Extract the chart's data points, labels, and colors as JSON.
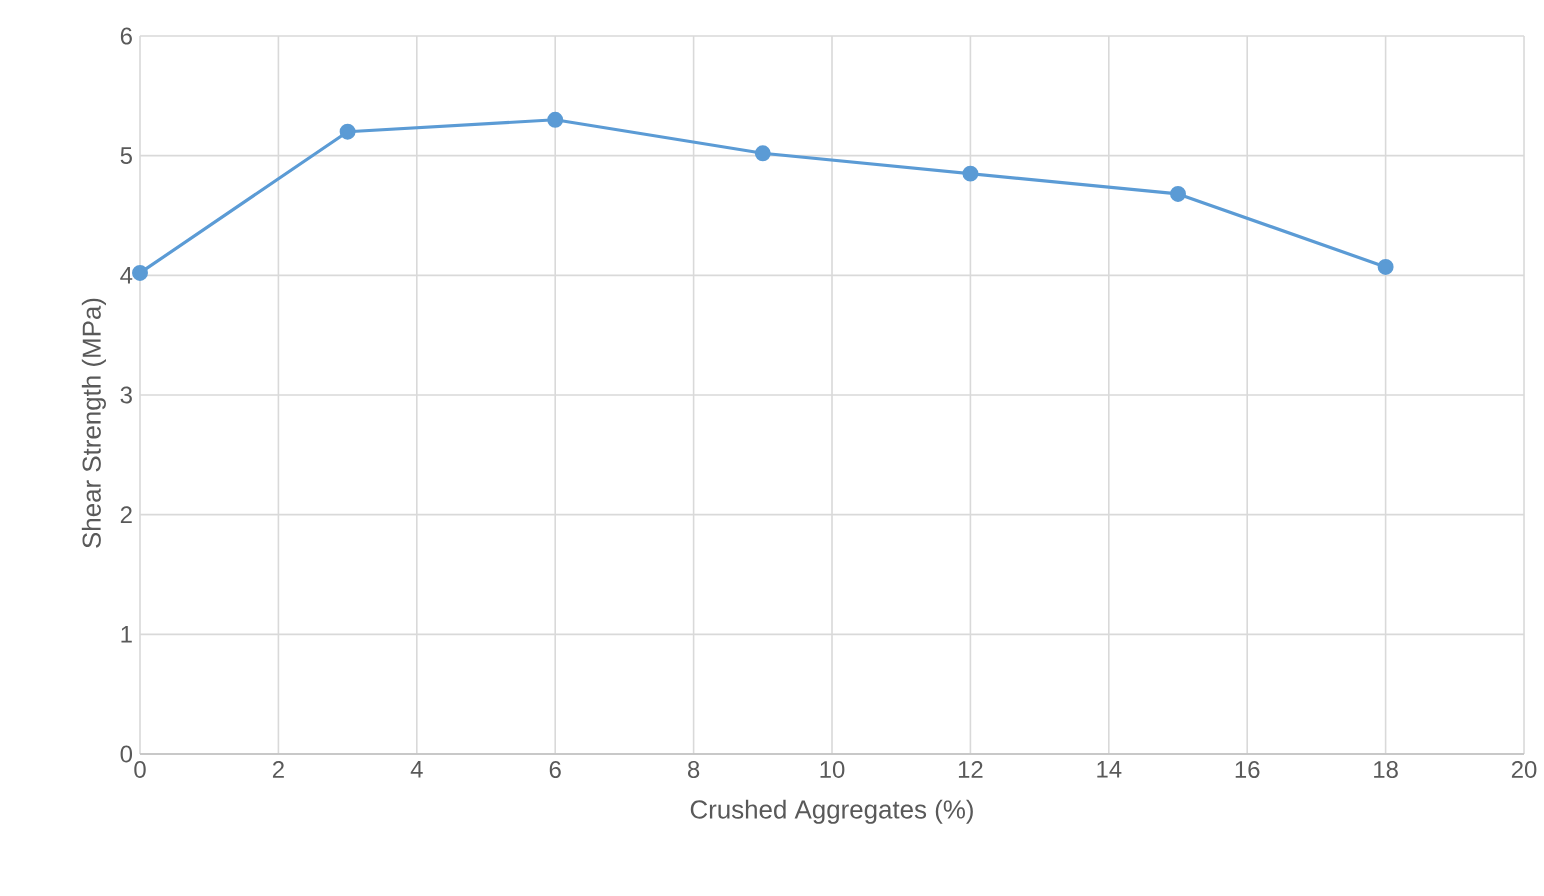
{
  "chart_data": {
    "type": "line",
    "xlabel": "Crushed Aggregates (%)",
    "ylabel": "Shear Strength (MPa)",
    "x": [
      0,
      3,
      6,
      9,
      12,
      15,
      18
    ],
    "series": [
      {
        "color": "#5b9bd5",
        "values": [
          4.02,
          5.2,
          5.3,
          5.02,
          4.85,
          4.68,
          4.07
        ]
      }
    ],
    "xlim": [
      0,
      20
    ],
    "ylim": [
      0,
      6
    ],
    "xticks": [
      0,
      2,
      4,
      6,
      8,
      10,
      12,
      14,
      16,
      18,
      20
    ],
    "yticks": [
      0,
      1,
      2,
      3,
      4,
      5,
      6
    ],
    "grid": true,
    "marker": "circle",
    "line_style": "solid"
  }
}
